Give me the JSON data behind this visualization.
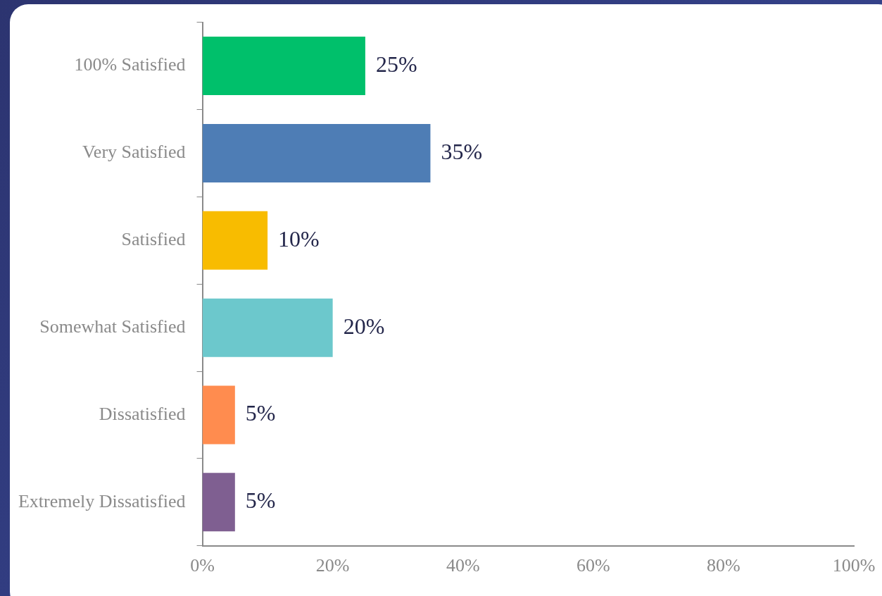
{
  "chart_data": {
    "type": "bar",
    "orientation": "horizontal",
    "categories": [
      "100% Satisfied",
      "Very Satisfied",
      "Satisfied",
      "Somewhat Satisfied",
      "Dissatisfied",
      "Extremely Dissatisfied"
    ],
    "values": [
      25,
      35,
      10,
      20,
      5,
      5
    ],
    "colors": [
      "#00c06b",
      "#4e7db5",
      "#f8bc00",
      "#6cc8cc",
      "#ff8c4f",
      "#7f5f91"
    ],
    "value_labels": [
      "25%",
      "35%",
      "10%",
      "20%",
      "5%",
      "5%"
    ],
    "xlim": [
      0,
      100
    ],
    "xticks": [
      {
        "value": 0,
        "label": "0%"
      },
      {
        "value": 20,
        "label": "20%"
      },
      {
        "value": 40,
        "label": "40%"
      },
      {
        "value": 60,
        "label": "60%"
      },
      {
        "value": 80,
        "label": "80%"
      },
      {
        "value": 100,
        "label": "100%"
      }
    ]
  }
}
